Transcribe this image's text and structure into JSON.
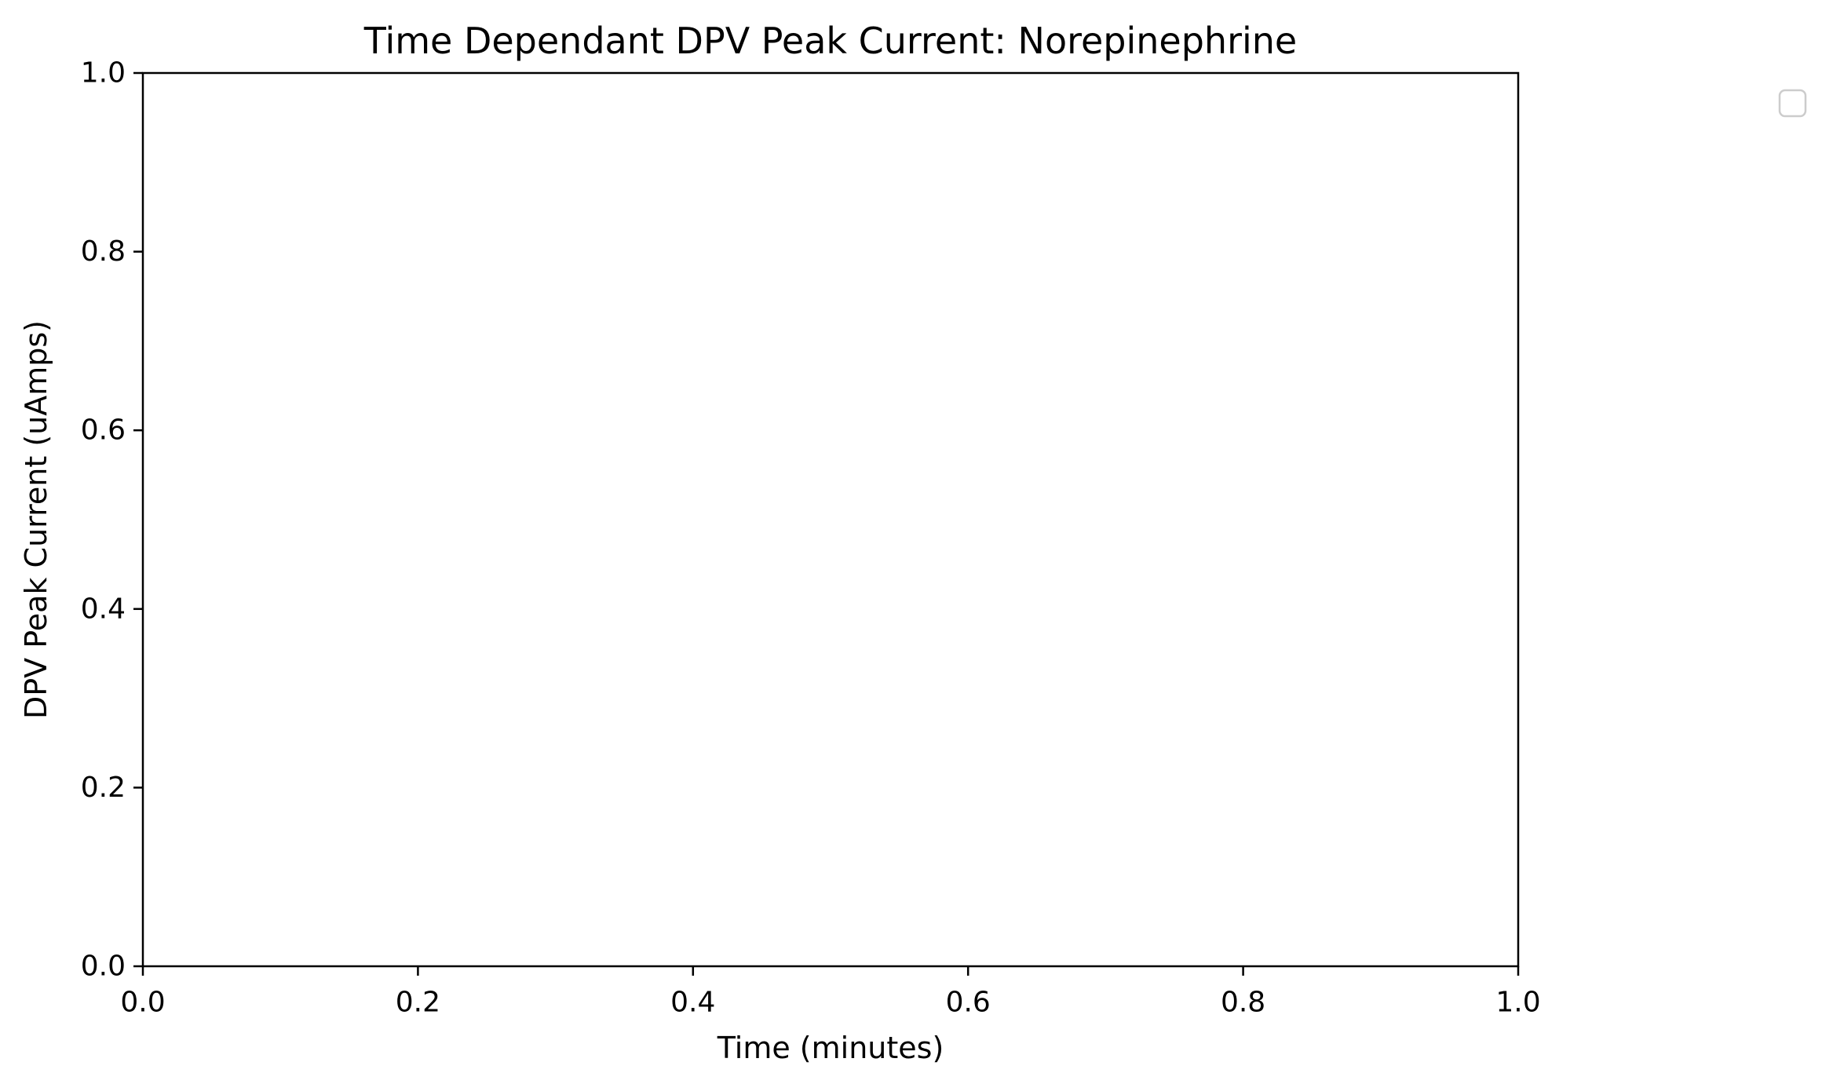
{
  "chart_data": {
    "type": "line",
    "title": "Time Dependant DPV Peak Current: Norepinephrine",
    "xlabel": "Time (minutes)",
    "ylabel": "DPV Peak Current (uAmps)",
    "xlim": [
      0.0,
      1.0
    ],
    "ylim": [
      0.0,
      1.0
    ],
    "xticks": [
      0.0,
      0.2,
      0.4,
      0.6,
      0.8,
      1.0
    ],
    "yticks": [
      0.0,
      0.2,
      0.4,
      0.6,
      0.8,
      1.0
    ],
    "xtick_labels": [
      "0.0",
      "0.2",
      "0.4",
      "0.6",
      "0.8",
      "1.0"
    ],
    "ytick_labels": [
      "0.0",
      "0.2",
      "0.4",
      "0.6",
      "0.8",
      "1.0"
    ],
    "series": [],
    "grid": false,
    "legend": {
      "placement": "upper-right-outside",
      "entries": []
    },
    "colors": {
      "axes": "#000000",
      "background": "#ffffff",
      "legend_border": "#cccccc"
    }
  }
}
